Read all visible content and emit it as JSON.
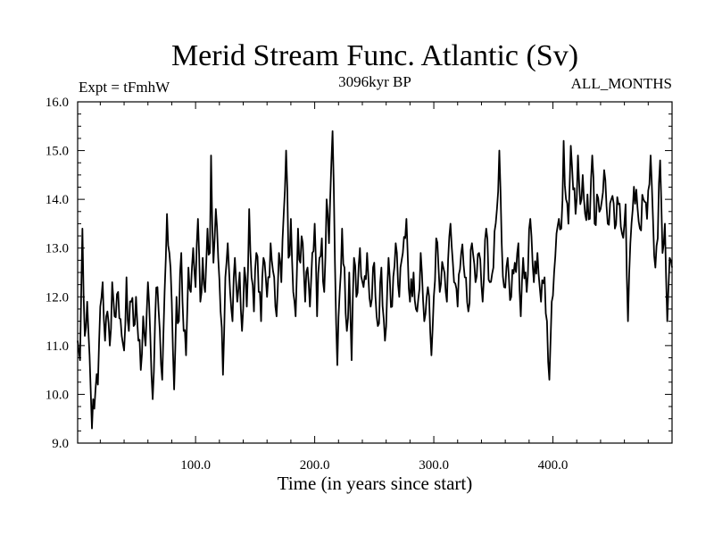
{
  "chart_data": {
    "type": "line",
    "title": "Merid Stream Func. Atlantic (Sv)",
    "subtitle_left": "Expt = tFmhW",
    "subtitle_center": "3096kyr BP",
    "subtitle_right": "ALL_MONTHS",
    "xlabel": "Time (in years since start)",
    "ylabel": "",
    "xlim": [
      1,
      500
    ],
    "ylim": [
      9.0,
      16.0
    ],
    "x_ticks": [
      100,
      200,
      300,
      400
    ],
    "x_tick_labels": [
      "100.0",
      "200.0",
      "300.0",
      "400.0"
    ],
    "y_ticks": [
      9,
      10,
      11,
      12,
      13,
      14,
      15,
      16
    ],
    "y_tick_labels": [
      "9.0",
      "10.0",
      "11.0",
      "12.0",
      "13.0",
      "14.0",
      "15.0",
      "16.0"
    ],
    "x_start": 1,
    "x_step": 1,
    "anchors": [
      [
        1,
        11.1
      ],
      [
        3,
        10.7
      ],
      [
        5,
        13.4
      ],
      [
        7,
        11.2
      ],
      [
        9,
        11.9
      ],
      [
        11,
        10.8
      ],
      [
        13,
        9.3
      ],
      [
        14,
        9.9
      ],
      [
        16,
        10.1
      ],
      [
        18,
        10.2
      ],
      [
        20,
        11.8
      ],
      [
        22,
        12.3
      ],
      [
        24,
        11.1
      ],
      [
        26,
        11.7
      ],
      [
        28,
        11.0
      ],
      [
        30,
        12.3
      ],
      [
        32,
        11.6
      ],
      [
        35,
        12.1
      ],
      [
        38,
        11.2
      ],
      [
        40,
        10.9
      ],
      [
        42,
        12.4
      ],
      [
        44,
        11.3
      ],
      [
        46,
        11.9
      ],
      [
        48,
        11.4
      ],
      [
        50,
        12.0
      ],
      [
        52,
        11.1
      ],
      [
        54,
        10.5
      ],
      [
        56,
        11.6
      ],
      [
        58,
        11.0
      ],
      [
        60,
        12.3
      ],
      [
        62,
        11.2
      ],
      [
        64,
        9.9
      ],
      [
        66,
        11.5
      ],
      [
        68,
        12.2
      ],
      [
        70,
        11.3
      ],
      [
        72,
        10.3
      ],
      [
        74,
        12.1
      ],
      [
        76,
        13.7
      ],
      [
        78,
        12.9
      ],
      [
        80,
        11.9
      ],
      [
        82,
        10.1
      ],
      [
        84,
        12.0
      ],
      [
        86,
        11.5
      ],
      [
        88,
        12.9
      ],
      [
        90,
        11.3
      ],
      [
        92,
        10.8
      ],
      [
        94,
        12.6
      ],
      [
        96,
        12.1
      ],
      [
        98,
        13.0
      ],
      [
        100,
        12.2
      ],
      [
        102,
        13.6
      ],
      [
        104,
        11.9
      ],
      [
        106,
        12.8
      ],
      [
        108,
        12.1
      ],
      [
        110,
        13.4
      ],
      [
        112,
        12.9
      ],
      [
        113,
        14.9
      ],
      [
        115,
        12.7
      ],
      [
        117,
        13.8
      ],
      [
        119,
        12.8
      ],
      [
        121,
        11.7
      ],
      [
        123,
        10.4
      ],
      [
        125,
        12.4
      ],
      [
        127,
        13.1
      ],
      [
        129,
        12.1
      ],
      [
        131,
        11.5
      ],
      [
        133,
        12.8
      ],
      [
        135,
        11.9
      ],
      [
        137,
        12.5
      ],
      [
        139,
        11.3
      ],
      [
        141,
        12.6
      ],
      [
        143,
        11.8
      ],
      [
        145,
        13.8
      ],
      [
        147,
        12.4
      ],
      [
        149,
        11.7
      ],
      [
        151,
        12.9
      ],
      [
        153,
        12.1
      ],
      [
        155,
        11.5
      ],
      [
        157,
        12.8
      ],
      [
        160,
        12.0
      ],
      [
        163,
        13.1
      ],
      [
        166,
        12.4
      ],
      [
        168,
        11.6
      ],
      [
        170,
        12.9
      ],
      [
        172,
        12.3
      ],
      [
        174,
        13.7
      ],
      [
        176,
        15.0
      ],
      [
        178,
        12.8
      ],
      [
        180,
        13.6
      ],
      [
        182,
        12.1
      ],
      [
        184,
        11.6
      ],
      [
        186,
        13.4
      ],
      [
        188,
        12.7
      ],
      [
        190,
        13.1
      ],
      [
        192,
        11.9
      ],
      [
        194,
        12.6
      ],
      [
        196,
        11.8
      ],
      [
        198,
        12.9
      ],
      [
        200,
        13.5
      ],
      [
        202,
        11.6
      ],
      [
        204,
        12.8
      ],
      [
        206,
        13.2
      ],
      [
        208,
        12.1
      ],
      [
        210,
        14.0
      ],
      [
        212,
        13.1
      ],
      [
        215,
        15.4
      ],
      [
        217,
        12.7
      ],
      [
        219,
        10.6
      ],
      [
        221,
        12.1
      ],
      [
        223,
        13.4
      ],
      [
        225,
        12.6
      ],
      [
        227,
        11.3
      ],
      [
        229,
        12.5
      ],
      [
        231,
        10.7
      ],
      [
        233,
        12.8
      ],
      [
        235,
        12.0
      ],
      [
        238,
        13.0
      ],
      [
        241,
        12.2
      ],
      [
        244,
        12.9
      ],
      [
        247,
        11.8
      ],
      [
        250,
        12.7
      ],
      [
        253,
        11.4
      ],
      [
        256,
        12.6
      ],
      [
        259,
        11.1
      ],
      [
        262,
        12.8
      ],
      [
        265,
        11.8
      ],
      [
        268,
        13.1
      ],
      [
        271,
        12.0
      ],
      [
        274,
        12.9
      ],
      [
        277,
        13.6
      ],
      [
        280,
        11.9
      ],
      [
        283,
        12.5
      ],
      [
        286,
        11.7
      ],
      [
        289,
        12.9
      ],
      [
        292,
        11.5
      ],
      [
        295,
        12.2
      ],
      [
        298,
        10.8
      ],
      [
        300,
        12.0
      ],
      [
        302,
        13.2
      ],
      [
        305,
        12.1
      ],
      [
        308,
        12.6
      ],
      [
        311,
        11.9
      ],
      [
        314,
        13.5
      ],
      [
        317,
        12.3
      ],
      [
        320,
        11.8
      ],
      [
        323,
        12.9
      ],
      [
        326,
        12.4
      ],
      [
        329,
        11.7
      ],
      [
        332,
        13.1
      ],
      [
        335,
        12.3
      ],
      [
        338,
        12.9
      ],
      [
        341,
        11.9
      ],
      [
        344,
        13.4
      ],
      [
        347,
        12.3
      ],
      [
        350,
        12.6
      ],
      [
        353,
        13.8
      ],
      [
        355,
        15.0
      ],
      [
        357,
        13.1
      ],
      [
        359,
        12.2
      ],
      [
        362,
        12.8
      ],
      [
        365,
        12.0
      ],
      [
        368,
        12.7
      ],
      [
        371,
        13.1
      ],
      [
        373,
        11.6
      ],
      [
        375,
        12.8
      ],
      [
        378,
        12.1
      ],
      [
        381,
        13.6
      ],
      [
        384,
        12.3
      ],
      [
        387,
        12.9
      ],
      [
        390,
        11.9
      ],
      [
        393,
        12.4
      ],
      [
        395,
        11.5
      ],
      [
        397,
        10.3
      ],
      [
        399,
        11.9
      ],
      [
        401,
        12.5
      ],
      [
        403,
        13.3
      ],
      [
        405,
        13.6
      ],
      [
        407,
        13.4
      ],
      [
        409,
        15.2
      ],
      [
        411,
        14.0
      ],
      [
        413,
        13.5
      ],
      [
        415,
        15.1
      ],
      [
        417,
        14.2
      ],
      [
        419,
        13.7
      ],
      [
        421,
        14.9
      ],
      [
        423,
        13.9
      ],
      [
        425,
        14.5
      ],
      [
        427,
        13.7
      ],
      [
        429,
        14.1
      ],
      [
        431,
        13.6
      ],
      [
        433,
        14.9
      ],
      [
        435,
        13.5
      ],
      [
        437,
        14.1
      ],
      [
        440,
        13.8
      ],
      [
        443,
        14.6
      ],
      [
        446,
        13.5
      ],
      [
        449,
        14.0
      ],
      [
        452,
        13.4
      ],
      [
        455,
        13.9
      ],
      [
        458,
        13.3
      ],
      [
        461,
        13.9
      ],
      [
        463,
        11.5
      ],
      [
        465,
        13.1
      ],
      [
        467,
        13.8
      ],
      [
        470,
        14.2
      ],
      [
        473,
        13.4
      ],
      [
        476,
        14.0
      ],
      [
        479,
        13.6
      ],
      [
        482,
        14.9
      ],
      [
        484,
        13.6
      ],
      [
        486,
        12.6
      ],
      [
        488,
        13.2
      ],
      [
        490,
        14.8
      ],
      [
        492,
        12.9
      ],
      [
        494,
        13.5
      ],
      [
        496,
        11.5
      ],
      [
        498,
        12.8
      ],
      [
        500,
        12.6
      ]
    ]
  }
}
